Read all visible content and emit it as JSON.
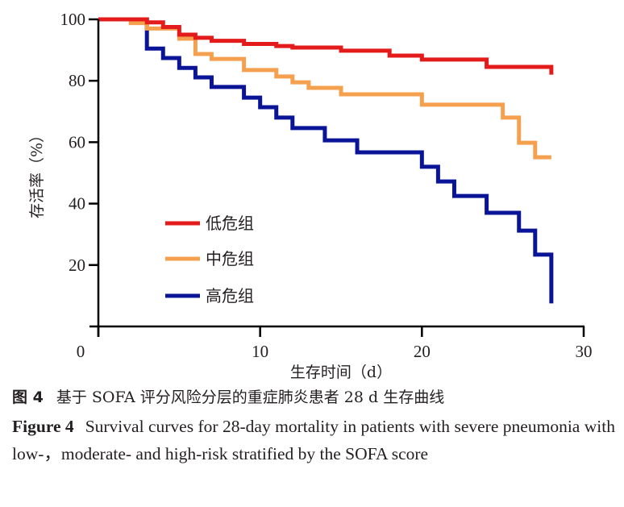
{
  "chart_data": {
    "type": "line",
    "subtype": "kaplan-meier-step",
    "title": "",
    "xlabel": "生存时间（d）",
    "ylabel": "存活率（%）",
    "xlim": [
      0,
      30
    ],
    "ylim": [
      0,
      100
    ],
    "x_ticks": [
      0,
      10,
      20,
      30
    ],
    "y_ticks": [
      20,
      40,
      60,
      80,
      100
    ],
    "x_tick_labels": [
      "0",
      "10",
      "20",
      "30"
    ],
    "y_tick_labels": [
      "20",
      "40",
      "60",
      "80",
      "100"
    ],
    "grid": false,
    "legend_position": "lower-left",
    "series": [
      {
        "name": "低危组",
        "color": "#e31b1b",
        "x": [
          0,
          3,
          4,
          5,
          6,
          7,
          9,
          11,
          12,
          15,
          18,
          20,
          24,
          28
        ],
        "y": [
          100,
          99,
          97.5,
          95,
          94,
          93,
          92,
          91.3,
          90.8,
          89.8,
          88.2,
          86.9,
          84.5,
          82
        ],
        "end_x": 28
      },
      {
        "name": "中危组",
        "color": "#f5a04f",
        "x": [
          0,
          2,
          3,
          5,
          6,
          7,
          9,
          11,
          12,
          13,
          15,
          20,
          25,
          26,
          27
        ],
        "y": [
          100,
          98.8,
          97,
          93.7,
          88.7,
          87.1,
          83.5,
          81.4,
          79.5,
          77.7,
          75.6,
          72.2,
          68,
          59.8,
          55.1
        ],
        "end_x": 28
      },
      {
        "name": "高危组",
        "color": "#0a1496",
        "x": [
          0,
          3,
          4,
          5,
          6,
          7,
          9,
          10,
          11,
          12,
          14,
          16,
          20,
          21,
          22,
          24,
          26,
          27,
          28
        ],
        "y": [
          100,
          90.5,
          87.4,
          84.2,
          81.1,
          78,
          74.5,
          71.4,
          68,
          64.6,
          60.6,
          56.7,
          52,
          47.2,
          42.5,
          37,
          31.2,
          23.4,
          7.5
        ],
        "end_x": 28
      }
    ]
  },
  "caption": {
    "cn_label": "图 4",
    "cn_text": "基于 SOFA 评分风险分层的重症肺炎患者 28 d 生存曲线",
    "en_label": "Figure 4",
    "en_text": "Survival curves for 28-day mortality in patients with severe pneumonia with low-，moderate- and high-risk stratified by the SOFA score"
  }
}
